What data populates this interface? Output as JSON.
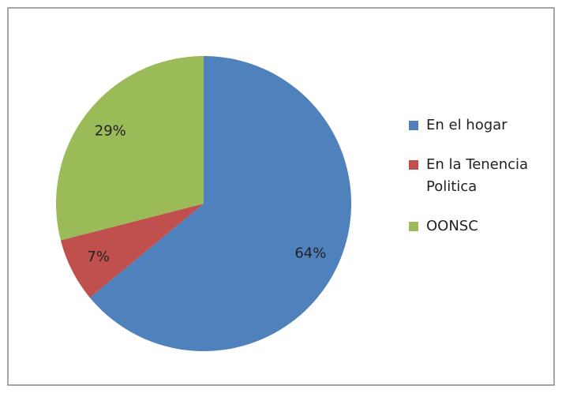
{
  "chart_data": {
    "type": "pie",
    "categories": [
      "En el hogar",
      "En la Tenencia Politica",
      "OONSC"
    ],
    "values": [
      64,
      7,
      29
    ],
    "value_labels": [
      "64%",
      "7%",
      "29%"
    ],
    "colors": [
      "#4f81bd",
      "#c0504d",
      "#9bbb59"
    ],
    "legend": "right"
  }
}
